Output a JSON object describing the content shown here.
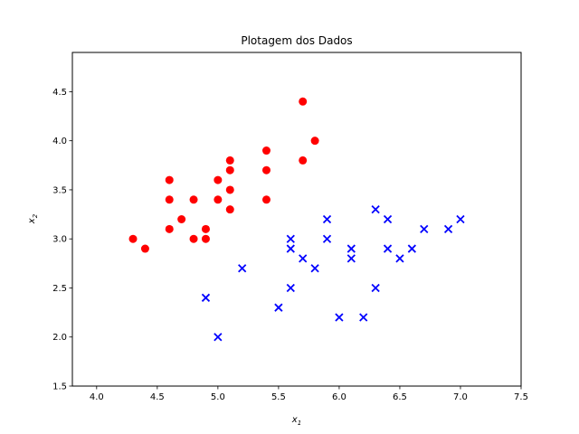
{
  "chart_data": {
    "type": "scatter",
    "title": "Plotagem dos Dados",
    "xlabel": "x",
    "xlabel_sub": "1",
    "ylabel": "x",
    "ylabel_sub": "2",
    "xlim": [
      3.8,
      7.5
    ],
    "ylim": [
      1.5,
      4.9
    ],
    "xticks": [
      4.0,
      4.5,
      5.0,
      5.5,
      6.0,
      6.5,
      7.0,
      7.5
    ],
    "xtick_labels": [
      "4.0",
      "4.5",
      "5.0",
      "5.5",
      "6.0",
      "6.5",
      "7.0",
      "7.5"
    ],
    "yticks": [
      1.5,
      2.0,
      2.5,
      3.0,
      3.5,
      4.0,
      4.5
    ],
    "ytick_labels": [
      "1.5",
      "2.0",
      "2.5",
      "3.0",
      "3.5",
      "4.0",
      "4.5"
    ],
    "grid": false,
    "legend": "none",
    "series": [
      {
        "marker": "circle",
        "color": "#ff0000",
        "points": [
          [
            4.3,
            3.0
          ],
          [
            4.4,
            2.9
          ],
          [
            4.6,
            3.1
          ],
          [
            4.6,
            3.4
          ],
          [
            4.6,
            3.6
          ],
          [
            4.7,
            3.2
          ],
          [
            4.8,
            3.0
          ],
          [
            4.8,
            3.4
          ],
          [
            4.9,
            3.0
          ],
          [
            4.9,
            3.1
          ],
          [
            5.0,
            3.4
          ],
          [
            5.0,
            3.6
          ],
          [
            5.1,
            3.3
          ],
          [
            5.1,
            3.5
          ],
          [
            5.1,
            3.7
          ],
          [
            5.1,
            3.8
          ],
          [
            5.4,
            3.4
          ],
          [
            5.4,
            3.7
          ],
          [
            5.4,
            3.9
          ],
          [
            5.7,
            3.8
          ],
          [
            5.7,
            4.4
          ],
          [
            5.8,
            4.0
          ]
        ]
      },
      {
        "marker": "x",
        "color": "#0000ff",
        "points": [
          [
            4.9,
            2.4
          ],
          [
            5.0,
            2.0
          ],
          [
            5.2,
            2.7
          ],
          [
            5.5,
            2.3
          ],
          [
            5.6,
            2.5
          ],
          [
            5.6,
            2.9
          ],
          [
            5.6,
            3.0
          ],
          [
            5.7,
            2.8
          ],
          [
            5.8,
            2.7
          ],
          [
            5.9,
            3.0
          ],
          [
            5.9,
            3.2
          ],
          [
            6.0,
            2.2
          ],
          [
            6.1,
            2.8
          ],
          [
            6.1,
            2.9
          ],
          [
            6.2,
            2.2
          ],
          [
            6.3,
            2.5
          ],
          [
            6.3,
            3.3
          ],
          [
            6.4,
            2.9
          ],
          [
            6.4,
            3.2
          ],
          [
            6.5,
            2.8
          ],
          [
            6.6,
            2.9
          ],
          [
            6.7,
            3.1
          ],
          [
            6.9,
            3.1
          ],
          [
            7.0,
            3.2
          ]
        ]
      }
    ]
  }
}
